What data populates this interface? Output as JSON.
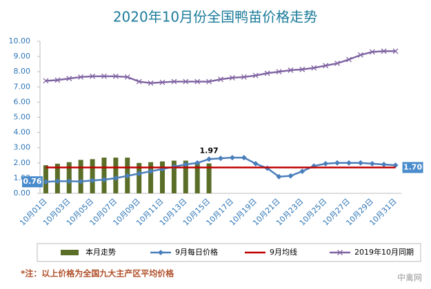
{
  "chart_data": {
    "type": "bar",
    "title": "2020年10月份全国鸭苗价格走势",
    "categories": [
      "10月01日",
      null,
      "10月03日",
      null,
      "10月05日",
      null,
      "10月07日",
      null,
      "10月09日",
      null,
      "10月11日",
      null,
      "10月13日",
      null,
      "10月15日",
      null,
      "10月17日",
      null,
      "10月19日",
      null,
      "10月21日",
      null,
      "10月23日",
      null,
      "10月25日",
      null,
      "10月27日",
      null,
      "10月29日",
      null,
      "10月31日"
    ],
    "ylim": [
      0,
      10
    ],
    "yticks": [
      {
        "value": 0,
        "label": "0.00"
      },
      {
        "value": 1,
        "label": "1.00"
      },
      {
        "value": 2,
        "label": "2.00"
      },
      {
        "value": 3,
        "label": "3.00"
      },
      {
        "value": 4,
        "label": "4.00"
      },
      {
        "value": 5,
        "label": "5.00"
      },
      {
        "value": 6,
        "label": "6.00"
      },
      {
        "value": 7,
        "label": "7.00"
      },
      {
        "value": 8,
        "label": "8.00"
      },
      {
        "value": 9,
        "label": "9.00"
      },
      {
        "value": 10,
        "label": "10.00"
      }
    ],
    "series": [
      {
        "name": "本月走势",
        "type": "bar",
        "color": "#5a6e28",
        "values": [
          1.85,
          1.95,
          2.05,
          2.2,
          2.25,
          2.35,
          2.35,
          2.35,
          2.0,
          2.05,
          2.1,
          2.15,
          2.15,
          2.0,
          1.97,
          null,
          null,
          null,
          null,
          null,
          null,
          null,
          null,
          null,
          null,
          null,
          null,
          null,
          null,
          null,
          null
        ],
        "value_labels": [
          null,
          null,
          null,
          null,
          null,
          null,
          null,
          null,
          null,
          null,
          null,
          null,
          null,
          null,
          "1.97",
          null,
          null,
          null,
          null,
          null,
          null,
          null,
          null,
          null,
          null,
          null,
          null,
          null,
          null,
          null,
          null
        ]
      },
      {
        "name": "9月每日价格",
        "type": "line",
        "marker": "diamond",
        "color": "#4a7ebb",
        "values": [
          0.76,
          0.8,
          0.8,
          0.78,
          0.85,
          0.9,
          1.0,
          1.15,
          1.3,
          1.45,
          1.6,
          1.75,
          1.9,
          2.0,
          2.25,
          2.3,
          2.35,
          2.35,
          1.95,
          1.65,
          1.1,
          1.15,
          1.45,
          1.8,
          1.95,
          2.0,
          2.0,
          2.0,
          1.95,
          1.9,
          1.85
        ],
        "value_labels": [
          "0.76",
          null,
          null,
          null,
          null,
          null,
          null,
          null,
          null,
          null,
          null,
          null,
          null,
          null,
          null,
          null,
          null,
          null,
          null,
          null,
          null,
          null,
          null,
          null,
          null,
          null,
          null,
          null,
          null,
          null,
          null
        ]
      },
      {
        "name": "9月均线",
        "type": "line",
        "color": "#c00000",
        "values": [
          1.7,
          1.7,
          1.7,
          1.7,
          1.7,
          1.7,
          1.7,
          1.7,
          1.7,
          1.7,
          1.7,
          1.7,
          1.7,
          1.7,
          1.7,
          1.7,
          1.7,
          1.7,
          1.7,
          1.7,
          1.7,
          1.7,
          1.7,
          1.7,
          1.7,
          1.7,
          1.7,
          1.7,
          1.7,
          1.7,
          1.7
        ],
        "value_labels": [
          null,
          null,
          null,
          null,
          null,
          null,
          null,
          null,
          null,
          null,
          null,
          null,
          null,
          null,
          null,
          null,
          null,
          null,
          null,
          null,
          null,
          null,
          null,
          null,
          null,
          null,
          null,
          null,
          null,
          null,
          "1.70"
        ]
      },
      {
        "name": "2019年10月同期",
        "type": "line",
        "marker": "x",
        "color": "#8064a2",
        "values": [
          7.4,
          7.45,
          7.55,
          7.65,
          7.7,
          7.7,
          7.7,
          7.65,
          7.35,
          7.25,
          7.3,
          7.35,
          7.35,
          7.35,
          7.35,
          7.5,
          7.6,
          7.65,
          7.75,
          7.9,
          8.0,
          8.1,
          8.15,
          8.25,
          8.4,
          8.55,
          8.8,
          9.1,
          9.3,
          9.35,
          9.35
        ]
      }
    ],
    "note": "*注：以上价格为全国九大主产区平均价格",
    "watermark": "中禽网"
  }
}
